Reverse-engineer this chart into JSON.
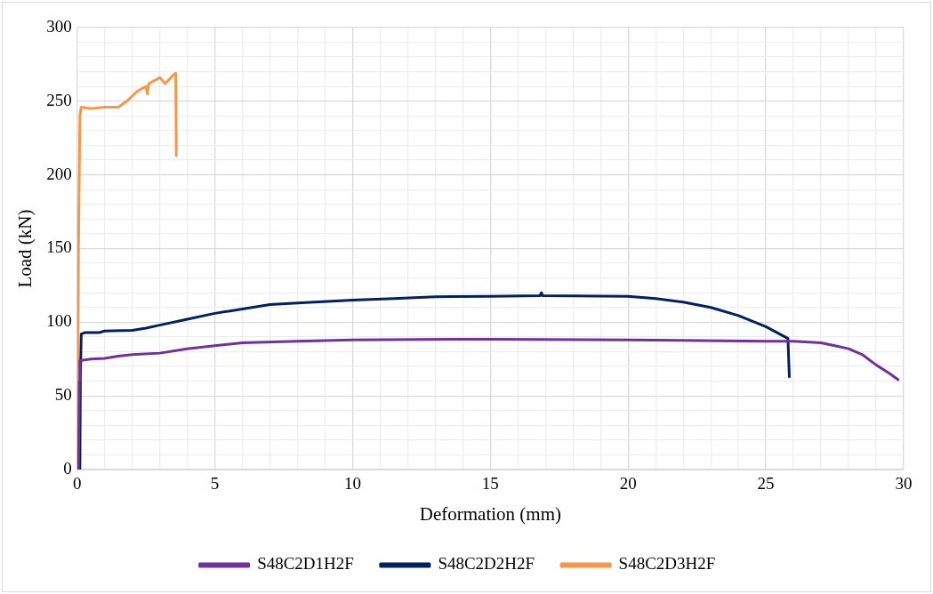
{
  "chart_data": {
    "type": "line",
    "xlabel": "Deformation (mm)",
    "ylabel": "Load (kN)",
    "xlim": [
      0,
      30
    ],
    "ylim": [
      0,
      300
    ],
    "xticks": [
      0,
      {
        "value": 1,
        "label": null
      },
      {
        "value": 2,
        "label": null
      },
      {
        "value": 3,
        "label": null
      },
      {
        "value": 4,
        "label": null
      },
      5,
      {
        "value": 6,
        "label": null
      },
      {
        "value": 7,
        "label": null
      },
      {
        "value": 8,
        "label": null
      },
      {
        "value": 9,
        "label": null
      },
      10,
      {
        "value": 11,
        "label": null
      },
      {
        "value": 12,
        "label": null
      },
      {
        "value": 13,
        "label": null
      },
      {
        "value": 14,
        "label": null
      },
      15,
      {
        "value": 16,
        "label": null
      },
      {
        "value": 17,
        "label": null
      },
      {
        "value": 18,
        "label": null
      },
      {
        "value": 19,
        "label": null
      },
      20,
      {
        "value": 21,
        "label": null
      },
      {
        "value": 22,
        "label": null
      },
      {
        "value": 23,
        "label": null
      },
      {
        "value": 24,
        "label": null
      },
      25,
      {
        "value": 26,
        "label": null
      },
      {
        "value": 27,
        "label": null
      },
      {
        "value": 28,
        "label": null
      },
      {
        "value": 29,
        "label": null
      },
      30
    ],
    "yticks": [
      0,
      {
        "value": 10,
        "label": null
      },
      {
        "value": 20,
        "label": null
      },
      {
        "value": 30,
        "label": null
      },
      {
        "value": 40,
        "label": null
      },
      50,
      {
        "value": 60,
        "label": null
      },
      {
        "value": 70,
        "label": null
      },
      {
        "value": 80,
        "label": null
      },
      {
        "value": 90,
        "label": null
      },
      100,
      {
        "value": 110,
        "label": null
      },
      {
        "value": 120,
        "label": null
      },
      {
        "value": 130,
        "label": null
      },
      {
        "value": 140,
        "label": null
      },
      150,
      {
        "value": 160,
        "label": null
      },
      {
        "value": 170,
        "label": null
      },
      {
        "value": 180,
        "label": null
      },
      {
        "value": 190,
        "label": null
      },
      200,
      {
        "value": 210,
        "label": null
      },
      {
        "value": 220,
        "label": null
      },
      {
        "value": 230,
        "label": null
      },
      {
        "value": 240,
        "label": null
      },
      250,
      {
        "value": 260,
        "label": null
      },
      {
        "value": 270,
        "label": null
      },
      {
        "value": 280,
        "label": null
      },
      {
        "value": 290,
        "label": null
      },
      300
    ],
    "grid": true,
    "legend": "bottom",
    "marker": "none",
    "line_style": "solid",
    "series": [
      {
        "name": "S48C2D1H2F",
        "color": "#7030a0",
        "x": [
          0.05,
          0.08,
          0.1,
          0.5,
          1,
          1.5,
          2,
          3,
          4,
          5,
          6,
          8,
          10,
          15,
          20,
          25,
          26,
          27,
          27.5,
          28,
          28.5,
          29,
          29.5,
          29.8
        ],
        "values": [
          0,
          60,
          74,
          75,
          75.5,
          77,
          78,
          79,
          82,
          84,
          86,
          87,
          88,
          88.5,
          88,
          87,
          87,
          86,
          84,
          82,
          78,
          71,
          65,
          61
        ]
      },
      {
        "name": "S48C2D2H2F",
        "color": "#002060",
        "x": [
          0.1,
          0.12,
          0.15,
          0.3,
          0.8,
          1,
          2,
          2.5,
          3,
          4,
          5,
          6,
          7,
          8,
          10,
          11.5,
          13,
          15,
          16.8,
          16.85,
          16.9,
          20,
          21,
          22,
          23,
          24,
          25,
          25.8,
          25.85
        ],
        "values": [
          0,
          65,
          92,
          93,
          93,
          94,
          94.5,
          96,
          98,
          102,
          106,
          109,
          112,
          113,
          115,
          116,
          117.3,
          117.5,
          118,
          120,
          118,
          117.5,
          116,
          113.6,
          110,
          104.5,
          97,
          89,
          63
        ]
      },
      {
        "name": "S48C2D3H2F",
        "color": "#f79646",
        "x": [
          0,
          0.05,
          0.1,
          0.15,
          0.5,
          1,
          1.5,
          1.8,
          2.2,
          2.5,
          2.55,
          2.6,
          3,
          3.2,
          3.5,
          3.58,
          3.6
        ],
        "values": [
          0,
          150,
          240,
          246,
          245,
          246,
          246,
          250,
          257,
          260,
          255,
          262,
          266,
          262,
          268,
          269,
          213
        ]
      }
    ]
  }
}
